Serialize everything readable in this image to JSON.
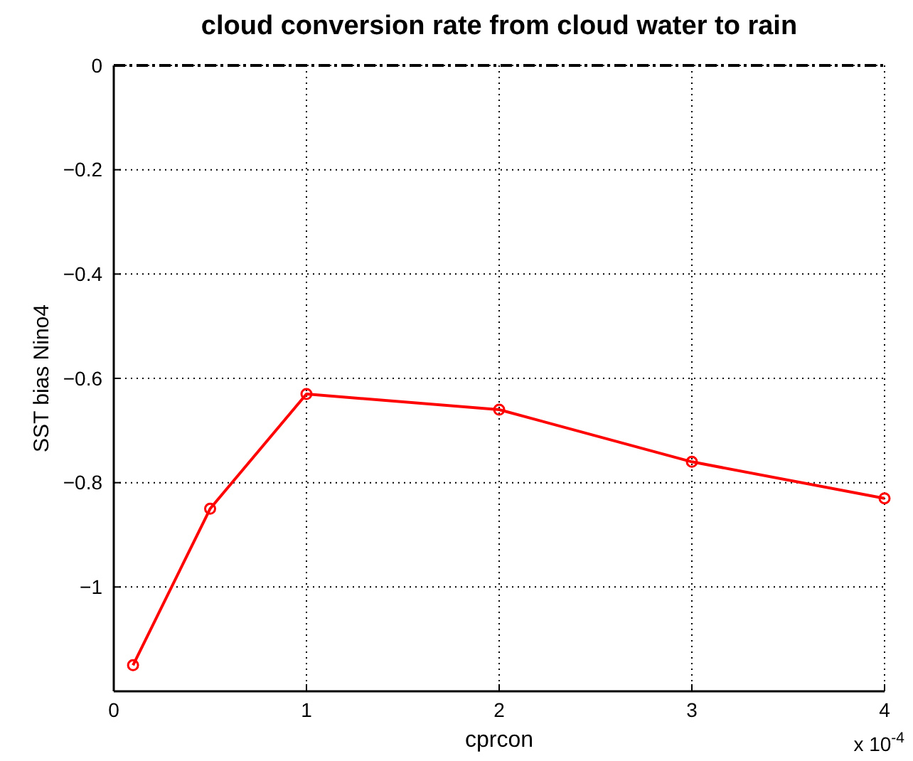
{
  "chart_data": {
    "type": "line",
    "title": "cloud conversion rate from cloud water to rain",
    "xlabel": "cprcon",
    "ylabel": "SST bias Nino4",
    "x": [
      0.1,
      0.5,
      1,
      2,
      3,
      4
    ],
    "series": [
      {
        "color": "#ff0000",
        "values": [
          -1.15,
          -0.85,
          -0.63,
          -0.66,
          -0.76,
          -0.83
        ]
      }
    ],
    "xlim": [
      0,
      4
    ],
    "xticks": [
      0,
      1,
      2,
      3,
      4
    ],
    "ylim": [
      -1.2,
      0
    ],
    "yticks": [
      {
        "value": -1,
        "label": "−1"
      },
      {
        "value": -0.8,
        "label": "−0.8"
      },
      {
        "value": -0.6,
        "label": "−0.6"
      },
      {
        "value": -0.4,
        "label": "−0.4"
      },
      {
        "value": -0.2,
        "label": "−0.2"
      },
      0
    ],
    "ref_lines": [
      {
        "axis": "y",
        "value": 0,
        "color": "#000000",
        "line_style": "dashdot"
      }
    ],
    "annotations": [
      "x 10$^{-4}$"
    ],
    "grid": true,
    "marker": "circle",
    "line_style": "solid"
  }
}
